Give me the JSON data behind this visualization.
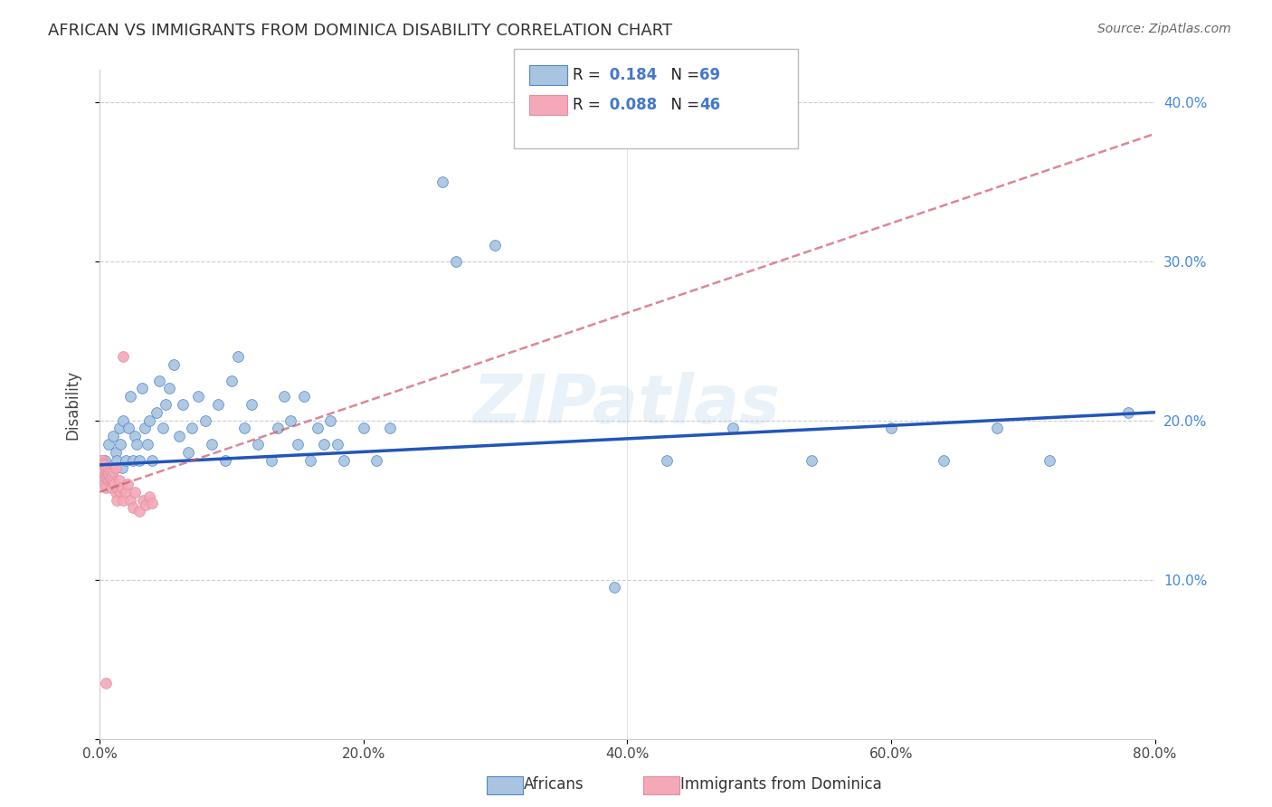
{
  "title": "AFRICAN VS IMMIGRANTS FROM DOMINICA DISABILITY CORRELATION CHART",
  "source": "Source: ZipAtlas.com",
  "ylabel": "Disability",
  "watermark": "ZIPatlas",
  "x_min": 0.0,
  "x_max": 0.8,
  "y_min": 0.0,
  "y_max": 0.42,
  "x_ticks": [
    0.0,
    0.2,
    0.4,
    0.6,
    0.8
  ],
  "x_tick_labels": [
    "0.0%",
    "20.0%",
    "40.0%",
    "60.0%",
    "80.0%"
  ],
  "y_ticks": [
    0.0,
    0.1,
    0.2,
    0.3,
    0.4
  ],
  "y_tick_labels": [
    "",
    "10.0%",
    "20.0%",
    "30.0%",
    "40.0%"
  ],
  "r1": "0.184",
  "n1": "69",
  "r2": "0.088",
  "n2": "46",
  "color_african": "#a8c4e0",
  "color_dominica": "#f4a8b8",
  "color_african_edge": "#5588cc",
  "color_dominica_edge": "#e090a0",
  "color_african_line": "#2255bb",
  "color_dominica_line": "#cc5566",
  "color_legend_blue": "#4477cc",
  "color_title": "#333333",
  "color_source": "#666666",
  "color_yaxis_right": "#4488dd",
  "marker_size": 72,
  "africans_x": [
    0.004,
    0.007,
    0.009,
    0.01,
    0.012,
    0.013,
    0.015,
    0.016,
    0.017,
    0.018,
    0.02,
    0.022,
    0.023,
    0.025,
    0.027,
    0.028,
    0.03,
    0.032,
    0.034,
    0.036,
    0.038,
    0.04,
    0.043,
    0.045,
    0.048,
    0.05,
    0.053,
    0.056,
    0.06,
    0.063,
    0.067,
    0.07,
    0.075,
    0.08,
    0.085,
    0.09,
    0.095,
    0.1,
    0.105,
    0.11,
    0.115,
    0.12,
    0.13,
    0.135,
    0.14,
    0.145,
    0.15,
    0.155,
    0.16,
    0.165,
    0.17,
    0.175,
    0.18,
    0.185,
    0.2,
    0.21,
    0.22,
    0.26,
    0.27,
    0.3,
    0.39,
    0.43,
    0.48,
    0.54,
    0.6,
    0.64,
    0.68,
    0.72,
    0.78
  ],
  "africans_y": [
    0.175,
    0.185,
    0.165,
    0.19,
    0.18,
    0.175,
    0.195,
    0.185,
    0.17,
    0.2,
    0.175,
    0.195,
    0.215,
    0.175,
    0.19,
    0.185,
    0.175,
    0.22,
    0.195,
    0.185,
    0.2,
    0.175,
    0.205,
    0.225,
    0.195,
    0.21,
    0.22,
    0.235,
    0.19,
    0.21,
    0.18,
    0.195,
    0.215,
    0.2,
    0.185,
    0.21,
    0.175,
    0.225,
    0.24,
    0.195,
    0.21,
    0.185,
    0.175,
    0.195,
    0.215,
    0.2,
    0.185,
    0.215,
    0.175,
    0.195,
    0.185,
    0.2,
    0.185,
    0.175,
    0.195,
    0.175,
    0.195,
    0.35,
    0.3,
    0.31,
    0.095,
    0.175,
    0.195,
    0.175,
    0.195,
    0.175,
    0.195,
    0.175,
    0.205
  ],
  "dominica_x": [
    0.001,
    0.001,
    0.001,
    0.002,
    0.002,
    0.002,
    0.003,
    0.003,
    0.003,
    0.004,
    0.004,
    0.004,
    0.005,
    0.005,
    0.005,
    0.006,
    0.006,
    0.007,
    0.007,
    0.008,
    0.008,
    0.009,
    0.009,
    0.01,
    0.01,
    0.011,
    0.012,
    0.013,
    0.014,
    0.015,
    0.016,
    0.017,
    0.018,
    0.02,
    0.021,
    0.023,
    0.025,
    0.027,
    0.03,
    0.033,
    0.035,
    0.038,
    0.04,
    0.018,
    0.012,
    0.005
  ],
  "dominica_y": [
    0.17,
    0.165,
    0.175,
    0.165,
    0.17,
    0.175,
    0.162,
    0.168,
    0.173,
    0.16,
    0.165,
    0.172,
    0.158,
    0.164,
    0.17,
    0.165,
    0.17,
    0.162,
    0.167,
    0.163,
    0.168,
    0.158,
    0.164,
    0.162,
    0.168,
    0.16,
    0.155,
    0.15,
    0.157,
    0.162,
    0.155,
    0.158,
    0.15,
    0.155,
    0.16,
    0.15,
    0.145,
    0.155,
    0.143,
    0.15,
    0.147,
    0.152,
    0.148,
    0.24,
    0.17,
    0.035
  ],
  "trendline_african_x0": 0.0,
  "trendline_african_y0": 0.172,
  "trendline_african_x1": 0.8,
  "trendline_african_y1": 0.205,
  "trendline_dominica_x0": 0.0,
  "trendline_dominica_y0": 0.155,
  "trendline_dominica_x1": 0.8,
  "trendline_dominica_y1": 0.38
}
